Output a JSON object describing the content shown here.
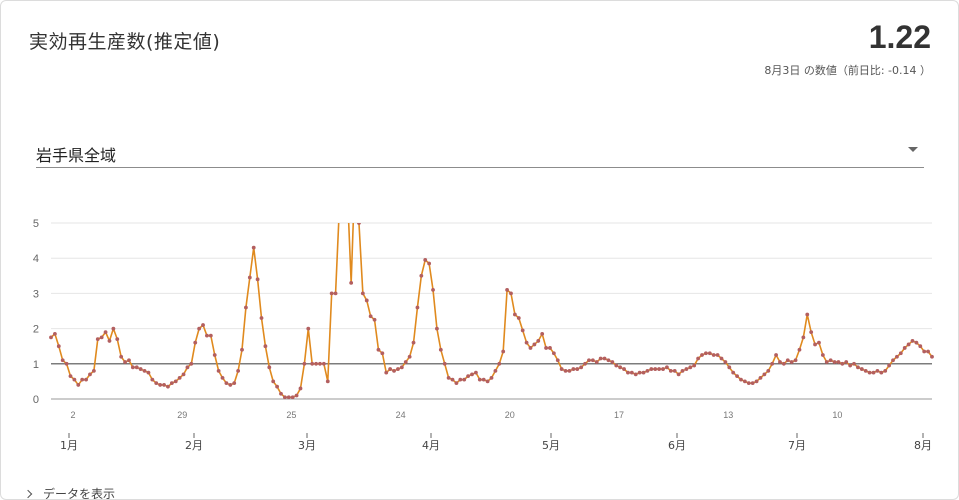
{
  "header": {
    "title": "実効再生産数(推定値)",
    "value": "1.22",
    "subtext": "8月3日 の数値（前日比: -0.14 ）"
  },
  "region_select": {
    "selected": "岩手県全域"
  },
  "footer": {
    "toggle_label": "データを表示"
  },
  "chart_data": {
    "type": "line",
    "title": "",
    "xlabel": "",
    "ylabel": "",
    "ylim": [
      0,
      5
    ],
    "y_ticks": [
      "0",
      "1",
      "2",
      "3",
      "4",
      "5"
    ],
    "reference_line": 1,
    "grid": true,
    "line_color": "#e08a1e",
    "point_color": "#b35f5f",
    "x_minor_ticks": [
      "2",
      "29",
      "25",
      "24",
      "20",
      "17",
      "13",
      "10"
    ],
    "x_month_labels": [
      "1月",
      "2月",
      "3月",
      "4月",
      "5月",
      "6月",
      "7月",
      "8月"
    ],
    "x_range": [
      "12月31日",
      "8月3日"
    ],
    "series": [
      {
        "name": "",
        "values": [
          1.75,
          1.85,
          1.5,
          1.1,
          1.0,
          0.65,
          0.55,
          0.4,
          0.55,
          0.55,
          0.7,
          0.8,
          1.7,
          1.75,
          1.9,
          1.65,
          2.0,
          1.7,
          1.2,
          1.05,
          1.1,
          0.9,
          0.9,
          0.85,
          0.8,
          0.75,
          0.55,
          0.45,
          0.4,
          0.4,
          0.35,
          0.45,
          0.5,
          0.6,
          0.7,
          0.9,
          1.0,
          1.6,
          2.0,
          2.1,
          1.8,
          1.8,
          1.25,
          0.8,
          0.6,
          0.45,
          0.4,
          0.45,
          0.8,
          1.4,
          2.6,
          3.45,
          4.3,
          3.4,
          2.3,
          1.5,
          0.9,
          0.5,
          0.35,
          0.15,
          0.05,
          0.05,
          0.05,
          0.1,
          0.3,
          1.0,
          2.0,
          1.0,
          1.0,
          1.0,
          1.0,
          0.5,
          3.0,
          3.0,
          5.5,
          7.0,
          6.0,
          3.3,
          6.5,
          5.0,
          3.0,
          2.8,
          2.35,
          2.25,
          1.4,
          1.3,
          0.75,
          0.85,
          0.8,
          0.85,
          0.9,
          1.05,
          1.2,
          1.6,
          2.6,
          3.5,
          3.95,
          3.85,
          3.1,
          2.0,
          1.4,
          1.0,
          0.6,
          0.55,
          0.45,
          0.55,
          0.55,
          0.65,
          0.7,
          0.75,
          0.55,
          0.55,
          0.5,
          0.6,
          0.8,
          1.0,
          1.35,
          3.1,
          3.0,
          2.4,
          2.3,
          1.95,
          1.6,
          1.45,
          1.55,
          1.65,
          1.85,
          1.45,
          1.45,
          1.3,
          1.1,
          0.85,
          0.8,
          0.8,
          0.85,
          0.85,
          0.9,
          1.0,
          1.1,
          1.1,
          1.05,
          1.15,
          1.15,
          1.1,
          1.05,
          0.95,
          0.9,
          0.85,
          0.75,
          0.75,
          0.7,
          0.75,
          0.75,
          0.8,
          0.85,
          0.85,
          0.85,
          0.85,
          0.9,
          0.8,
          0.8,
          0.7,
          0.8,
          0.85,
          0.9,
          0.95,
          1.15,
          1.25,
          1.3,
          1.3,
          1.25,
          1.25,
          1.15,
          1.05,
          0.9,
          0.75,
          0.65,
          0.55,
          0.5,
          0.45,
          0.45,
          0.5,
          0.6,
          0.7,
          0.8,
          1.0,
          1.25,
          1.05,
          1.0,
          1.1,
          1.05,
          1.1,
          1.4,
          1.75,
          2.4,
          1.9,
          1.55,
          1.6,
          1.25,
          1.05,
          1.1,
          1.05,
          1.05,
          1.0,
          1.05,
          0.95,
          1.0,
          0.9,
          0.85,
          0.8,
          0.75,
          0.75,
          0.8,
          0.75,
          0.8,
          0.95,
          1.1,
          1.2,
          1.3,
          1.45,
          1.55,
          1.65,
          1.6,
          1.5,
          1.35,
          1.35,
          1.2
        ]
      }
    ]
  }
}
